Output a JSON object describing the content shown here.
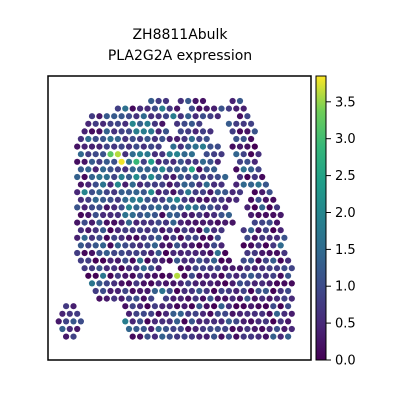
{
  "chart_data": {
    "type": "scatter",
    "title_lines": [
      "ZH8811Abulk",
      "PLA2G2A expression"
    ],
    "xlabel": "",
    "ylabel": "",
    "colorbar": {
      "colormap": "viridis",
      "range": [
        0.0,
        3.85
      ],
      "ticks": [
        0.0,
        0.5,
        1.0,
        1.5,
        2.0,
        2.5,
        3.0,
        3.5
      ],
      "tick_labels": [
        "0.0",
        "0.5",
        "1.0",
        "1.5",
        "2.0",
        "2.5",
        "3.0",
        "3.5"
      ]
    },
    "grid": false,
    "legend": "none",
    "colors": {
      "viridis_low": "#440154",
      "viridis_mid": "#21918c",
      "viridis_high": "#fde725",
      "frame": "#000000"
    },
    "tissue_rows": [
      [
        [
          26,
          30
        ],
        [
          34,
          40
        ],
        [
          47,
          50
        ]
      ],
      [
        [
          16,
          34
        ],
        [
          37,
          43
        ],
        [
          45,
          48
        ],
        [
          49,
          51
        ]
      ],
      [
        [
          10,
          45
        ],
        [
          50,
          52
        ]
      ],
      [
        [
          9,
          30
        ],
        [
          32,
          40
        ],
        [
          46,
          53
        ]
      ],
      [
        [
          7,
          30
        ],
        [
          33,
          42
        ],
        [
          48,
          54
        ]
      ],
      [
        [
          6,
          33
        ],
        [
          35,
          41
        ],
        [
          48,
          54
        ]
      ],
      [
        [
          6,
          29
        ],
        [
          32,
          44
        ],
        [
          47,
          54
        ]
      ],
      [
        [
          6,
          38
        ],
        [
          40,
          46
        ],
        [
          49,
          55
        ]
      ],
      [
        [
          6,
          30
        ],
        [
          32,
          44
        ],
        [
          49,
          55
        ]
      ],
      [
        [
          6,
          27
        ],
        [
          29,
          44
        ],
        [
          48,
          56
        ]
      ],
      [
        [
          6,
          32
        ],
        [
          34,
          47
        ],
        [
          49,
          57
        ]
      ],
      [
        [
          6,
          46
        ],
        [
          48,
          58
        ]
      ],
      [
        [
          6,
          50
        ],
        [
          54,
          59
        ]
      ],
      [
        [
          6,
          49
        ],
        [
          53,
          60
        ]
      ],
      [
        [
          6,
          47
        ],
        [
          51,
          60
        ]
      ],
      [
        [
          6,
          47
        ],
        [
          52,
          61
        ]
      ],
      [
        [
          6,
          48
        ],
        [
          53,
          61
        ]
      ],
      [
        [
          6,
          46
        ],
        [
          51,
          61
        ]
      ],
      [
        [
          6,
          45
        ],
        [
          52,
          62
        ]
      ],
      [
        [
          6,
          46
        ],
        [
          51,
          62
        ]
      ],
      [
        [
          6,
          47
        ],
        [
          51,
          63
        ]
      ],
      [
        [
          7,
          48
        ],
        [
          50,
          64
        ]
      ],
      [
        [
          7,
          29
        ],
        [
          33,
          64
        ]
      ],
      [
        [
          8,
          29
        ],
        [
          31,
          64
        ]
      ],
      [
        [
          9,
          64
        ]
      ],
      [
        [
          10,
          27
        ],
        [
          29,
          64
        ]
      ],
      [
        [
          12,
          27
        ],
        [
          29,
          64
        ]
      ],
      [
        [
          2,
          6
        ],
        [
          19,
          64
        ]
      ],
      [
        [
          1,
          7
        ],
        [
          19,
          64
        ]
      ],
      [
        [
          1,
          8
        ],
        [
          19,
          64
        ]
      ],
      [
        [
          2,
          7
        ],
        [
          19,
          64
        ]
      ],
      [
        [
          3,
          6
        ],
        [
          20,
          63
        ]
      ]
    ],
    "hotspots": [
      {
        "row": 5,
        "col": 34,
        "value": 3.8
      },
      {
        "row": 7,
        "col": 15,
        "value": 3.2
      },
      {
        "row": 7,
        "col": 17,
        "value": 3.6
      },
      {
        "row": 8,
        "col": 18,
        "value": 3.8
      },
      {
        "row": 8,
        "col": 22,
        "value": 2.9
      },
      {
        "row": 9,
        "col": 10,
        "value": 2.7
      },
      {
        "row": 9,
        "col": 12,
        "value": 2.8
      },
      {
        "row": 10,
        "col": 11,
        "value": 3.0
      },
      {
        "row": 10,
        "col": 13,
        "value": 3.1
      },
      {
        "row": 11,
        "col": 12,
        "value": 2.6
      },
      {
        "row": 22,
        "col": 29,
        "value": 3.5
      },
      {
        "row": 23,
        "col": 33,
        "value": 3.6
      },
      {
        "row": 24,
        "col": 59,
        "value": 3.4
      },
      {
        "row": 21,
        "col": 58,
        "value": 2.8
      }
    ]
  }
}
